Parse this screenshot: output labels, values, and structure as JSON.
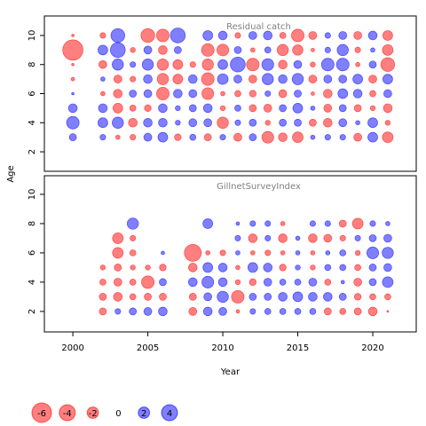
{
  "y_label": "Age",
  "positive_color": "#0000ff",
  "negative_color": "#ff0000",
  "legend": {
    "values": [
      -6,
      -4,
      -2,
      0,
      2,
      4
    ]
  },
  "chart_data": [
    {
      "type": "bubble",
      "title": "Residual catch",
      "x": [
        2000,
        2002,
        2003,
        2004,
        2005,
        2006,
        2007,
        2008,
        2009,
        2010,
        2011,
        2012,
        2013,
        2014,
        2015,
        2016,
        2017,
        2018,
        2019,
        2020,
        2021
      ],
      "y": [
        10,
        9,
        8,
        7,
        6,
        5,
        4,
        3
      ],
      "values": [
        [
          -0.1,
          -0.5,
          3,
          null,
          -3,
          -2.5,
          3.5,
          null,
          1.5,
          1.2,
          -0.5,
          1,
          1.2,
          -0.6,
          -2.5,
          -1,
          0.5,
          1,
          -1,
          1.2,
          -1.5
        ],
        [
          -6.5,
          1.5,
          3.5,
          -0.4,
          1,
          -1.2,
          0.8,
          null,
          -2.5,
          -2.2,
          0.8,
          -0.3,
          0.6,
          -2,
          -1.7,
          -0.2,
          0.5,
          2,
          -0.5,
          0.3,
          -1.8
        ],
        [
          -0.1,
          -1,
          2,
          0.5,
          2,
          -2,
          -1.5,
          -0.5,
          -2,
          1.5,
          3.5,
          -2.5,
          2.2,
          -1.2,
          1,
          -0.4,
          2.5,
          2.5,
          -0.3,
          0.8,
          -3
        ],
        [
          -0.2,
          0.3,
          -1,
          -0.5,
          1.2,
          -2,
          -1.5,
          1.2,
          -2.5,
          1.8,
          1,
          -1,
          2,
          1.2,
          2,
          -1,
          1,
          1,
          1.5,
          -1,
          1.5
        ],
        [
          0.1,
          -0.3,
          -1.2,
          0.8,
          1,
          -2.5,
          1.2,
          1,
          -2.2,
          -0.3,
          -0.6,
          -0.7,
          0.5,
          -1,
          0.8,
          -0.2,
          -1.2,
          1.5,
          1.2,
          -0.6,
          1
        ],
        [
          1.2,
          1.2,
          -1.5,
          -0.6,
          -0.7,
          1.2,
          0.4,
          0.8,
          1.2,
          -0.4,
          0.6,
          -0.8,
          -1,
          0.8,
          1.5,
          0.3,
          -1,
          0.8,
          -0.8,
          -0.4,
          -1.2
        ],
        [
          2.5,
          1.5,
          2,
          -1.2,
          1.2,
          1.2,
          0.4,
          1,
          1,
          -2,
          0.5,
          0.8,
          -0.4,
          0.8,
          0.8,
          -0.8,
          -1.2,
          1,
          0.3,
          1.5,
          -0.4
        ],
        [
          0.8,
          0.5,
          -0.3,
          -0.5,
          1,
          1.5,
          -0.7,
          0.6,
          -0.8,
          0.5,
          -1,
          0.8,
          -2.2,
          -1.2,
          -1.8,
          0.3,
          0.5,
          0.5,
          -1,
          1.5,
          -1.8
        ]
      ],
      "xlim": [
        1998.1,
        2022.9
      ],
      "ylim": [
        0.66,
        11.34
      ],
      "yticks": [
        2,
        4,
        6,
        8,
        10
      ]
    },
    {
      "type": "bubble",
      "title": "GillnetSurveyIndex",
      "x_label": "Year",
      "x": [
        2002,
        2003,
        2004,
        2005,
        2006,
        2007,
        2008,
        2009,
        2010,
        2011,
        2012,
        2013,
        2014,
        2015,
        2016,
        2017,
        2018,
        2019,
        2020,
        2021
      ],
      "y": [
        8,
        7,
        6,
        5,
        4,
        3,
        2
      ],
      "values": [
        [
          null,
          null,
          2,
          null,
          null,
          null,
          null,
          1.5,
          null,
          0.2,
          0.5,
          0.5,
          -0.3,
          null,
          0.5,
          0.5,
          -0.8,
          -1.8,
          0.5,
          0.3
        ],
        [
          null,
          -1.8,
          -0.5,
          null,
          null,
          null,
          null,
          null,
          null,
          0.5,
          -1.2,
          0.5,
          -1.2,
          0.3,
          -1.2,
          -1,
          -0.5,
          0.5,
          0.8,
          1
        ],
        [
          null,
          -1.8,
          -0.6,
          null,
          0.2,
          null,
          -4.5,
          -0.3,
          -0.5,
          0.3,
          -0.3,
          -0.5,
          -0.3,
          0.3,
          -0.3,
          0.3,
          0.6,
          -0.4,
          2.2,
          2
        ],
        [
          -0.4,
          -0.8,
          -0.4,
          -0.4,
          -0.7,
          null,
          -1.2,
          1.5,
          1.2,
          -0.3,
          1.5,
          1.2,
          -0.7,
          0.4,
          -0.4,
          0.6,
          0.6,
          -0.6,
          0.8,
          1
        ],
        [
          -0.6,
          -1,
          -0.6,
          -2.5,
          0.8,
          null,
          1.2,
          2.2,
          1.2,
          -0.4,
          -0.7,
          1,
          0.6,
          0.6,
          1,
          -0.6,
          0.2,
          -1,
          0.8,
          1.8
        ],
        [
          -0.8,
          -1.2,
          -0.6,
          -0.8,
          -0.8,
          null,
          -0.8,
          1,
          2,
          -2.5,
          0.8,
          0.8,
          1.2,
          1.5,
          1.2,
          1.2,
          0.8,
          -0.7,
          -0.6,
          -0.6
        ],
        [
          -0.8,
          0.5,
          0.8,
          1,
          1.2,
          null,
          -1,
          1.2,
          1,
          -0.2,
          0.5,
          0.6,
          0.6,
          0.6,
          0.6,
          -0.8,
          -0.6,
          -0.8,
          -1.2,
          -0.05
        ]
      ],
      "xlim": [
        1998.1,
        2022.9
      ],
      "xticks": [
        2000,
        2005,
        2010,
        2015,
        2020
      ],
      "ylim": [
        0.6,
        11.27
      ],
      "yticks": [
        2,
        4,
        6,
        8,
        10
      ]
    }
  ]
}
